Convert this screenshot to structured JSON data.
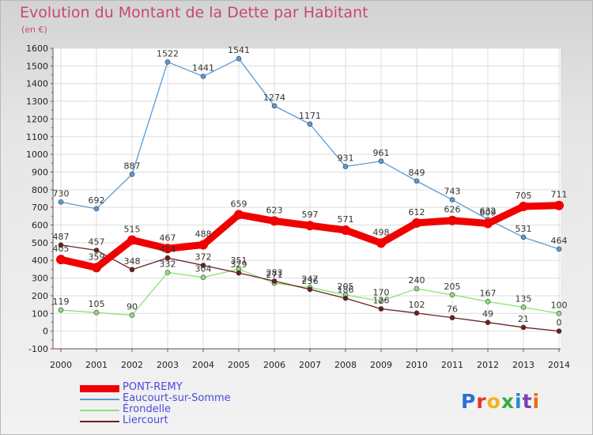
{
  "header": {
    "title": "Evolution du Montant de la Dette par Habitant",
    "subtitle": "(en €)"
  },
  "logo": {
    "text": "Proxiti",
    "colors": [
      "#2a6fd8",
      "#e8342a",
      "#f2b21b",
      "#3aa84a",
      "#1f8bd0",
      "#7a3fb0",
      "#e86a1a"
    ]
  },
  "chart_data": {
    "type": "line",
    "title": "Evolution du Montant de la Dette par Habitant",
    "subtitle": "(en €)",
    "xlabel": "",
    "ylabel": "",
    "x": [
      "2000",
      "2001",
      "2002",
      "2003",
      "2004",
      "2005",
      "2006",
      "2007",
      "2008",
      "2009",
      "2010",
      "2011",
      "2012",
      "2013",
      "2014"
    ],
    "ylim": [
      -100,
      1600
    ],
    "yticks": [
      -100,
      0,
      100,
      200,
      300,
      400,
      500,
      600,
      700,
      800,
      900,
      1000,
      1100,
      1200,
      1300,
      1400,
      1500,
      1600
    ],
    "grid": true,
    "legend_position": "bottom-left",
    "series": [
      {
        "name": "PONT-REMY",
        "color": "#f00000",
        "values": [
          405,
          359,
          515,
          467,
          488,
          659,
          623,
          597,
          571,
          498,
          612,
          626,
          609,
          705,
          711
        ],
        "labels": [
          "405",
          "359",
          "515",
          "467",
          "488",
          "659",
          "623",
          "597",
          "571",
          "498",
          "612",
          "626",
          "609",
          "705",
          "711"
        ]
      },
      {
        "name": "Eaucourt-sur-Somme",
        "color": "#5b9bd5",
        "values": [
          730,
          692,
          887,
          1522,
          1441,
          1541,
          1274,
          1171,
          931,
          961,
          849,
          743,
          632,
          531,
          464
        ],
        "labels": [
          "730",
          "692",
          "887",
          "1522",
          "1441",
          "1541",
          "1274",
          "1171",
          "931",
          "961",
          "849",
          "743",
          "632",
          "531",
          "464"
        ]
      },
      {
        "name": "Érondelle",
        "color": "#8fe07a",
        "values": [
          119,
          105,
          90,
          332,
          304,
          351,
          271,
          247,
          205,
          170,
          240,
          205,
          167,
          135,
          100
        ],
        "labels": [
          "119",
          "105",
          "90",
          "332",
          "304",
          "351",
          "271",
          "247",
          "205",
          "170",
          "240",
          "205",
          "167",
          "135",
          "100"
        ]
      },
      {
        "name": "Liercourt",
        "color": "#6b1f1f",
        "values": [
          487,
          457,
          348,
          414,
          372,
          329,
          283,
          236,
          186,
          126,
          102,
          76,
          49,
          21,
          0
        ],
        "labels": [
          "487",
          "457",
          "348",
          "414",
          "372",
          "329",
          "283",
          "236",
          "186",
          "126",
          "102",
          "76",
          "49",
          "21",
          "0"
        ]
      }
    ]
  }
}
